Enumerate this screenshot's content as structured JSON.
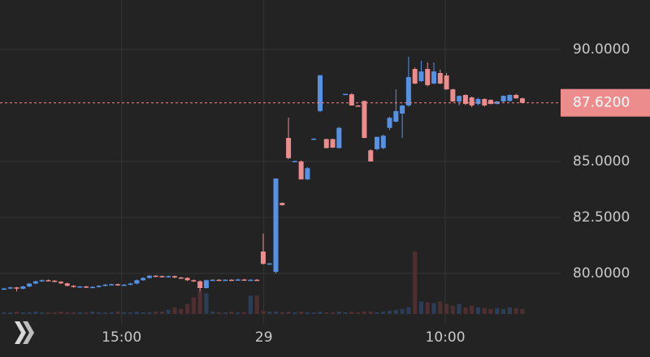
{
  "chart_data": {
    "type": "candlestick",
    "up_color": "#5592e6",
    "down_color": "#ec8c8c",
    "up_volume_color": "#2c3e57",
    "down_volume_color": "#4d2f31",
    "grid": true,
    "ylim": [
      77.72,
      92.21
    ],
    "yticks": [
      {
        "value": 90,
        "label": "90.0000"
      },
      {
        "value": 85,
        "label": "85.0000"
      },
      {
        "value": 82.5,
        "label": "82.5000"
      },
      {
        "value": 80,
        "label": "80.0000"
      }
    ],
    "xlim": [
      -0.64,
      88.05
    ],
    "xticks": [
      {
        "value": 18.6,
        "label": "15:00"
      },
      {
        "value": 41.1,
        "label": "29"
      },
      {
        "value": 69.8,
        "label": "10:00"
      }
    ],
    "last_price": {
      "value": 87.62,
      "label": "87.6200"
    },
    "x": [
      0,
      1,
      2,
      3,
      4,
      5,
      6,
      7,
      8,
      9,
      10,
      11,
      12,
      13,
      14,
      15,
      16,
      17,
      18,
      19,
      20,
      21,
      22,
      23,
      24,
      25,
      26,
      27,
      28,
      29,
      30,
      31,
      32,
      33,
      34,
      35,
      36,
      37,
      38,
      39,
      40,
      41,
      42,
      43,
      44,
      45,
      46,
      47,
      48,
      49,
      50,
      51,
      52,
      53,
      54,
      55,
      56,
      57,
      58,
      59,
      60,
      61,
      62,
      63,
      64,
      65,
      66,
      67,
      68,
      69,
      70,
      71,
      72,
      73,
      74,
      75,
      76,
      77,
      78,
      79,
      80,
      81,
      82
    ],
    "open": [
      79.3,
      79.33,
      79.38,
      79.32,
      79.42,
      79.55,
      79.65,
      79.7,
      79.68,
      79.63,
      79.56,
      79.45,
      79.4,
      79.42,
      79.38,
      79.4,
      79.45,
      79.5,
      79.52,
      79.48,
      79.5,
      79.55,
      79.7,
      79.8,
      79.9,
      79.88,
      79.85,
      79.88,
      79.82,
      79.8,
      79.7,
      79.65,
      79.35,
      79.7,
      79.72,
      79.7,
      79.72,
      79.71,
      79.73,
      79.71,
      79.72,
      80.98,
      80.42,
      80.07,
      83.15,
      86.05,
      85.0,
      85.0,
      84.2,
      86.0,
      87.25,
      86.0,
      86.0,
      85.6,
      88.0,
      88.0,
      87.5,
      87.7,
      85.5,
      85.55,
      85.6,
      86.5,
      86.78,
      87.14,
      87.5,
      89.13,
      88.59,
      89.13,
      88.48,
      88.95,
      88.84,
      88.22,
      87.68,
      87.97,
      87.86,
      87.57,
      87.79,
      87.75,
      87.57,
      87.68,
      87.7,
      87.97,
      87.82
    ],
    "high": [
      79.36,
      79.41,
      79.4,
      79.45,
      79.58,
      79.68,
      79.73,
      79.73,
      79.71,
      79.66,
      79.59,
      79.48,
      79.45,
      79.45,
      79.43,
      79.48,
      79.53,
      79.55,
      79.55,
      79.53,
      79.58,
      79.73,
      79.83,
      79.93,
      79.93,
      79.91,
      79.91,
      79.91,
      79.85,
      79.83,
      79.73,
      79.7,
      79.73,
      79.75,
      79.75,
      79.75,
      79.75,
      79.76,
      79.76,
      79.75,
      79.75,
      81.78,
      80.46,
      84.24,
      83.17,
      86.96,
      85.04,
      85.05,
      84.75,
      86.03,
      88.85,
      86.02,
      86.02,
      86.55,
      88.03,
      88.05,
      87.52,
      87.72,
      85.55,
      86.1,
      86.2,
      87.0,
      88.22,
      87.52,
      89.67,
      89.2,
      89.5,
      89.42,
      89.42,
      89.1,
      88.95,
      88.25,
      87.95,
      88.0,
      87.9,
      87.85,
      87.82,
      87.78,
      87.7,
      87.95,
      88.0,
      88.02,
      87.85
    ],
    "low": [
      79.27,
      79.3,
      79.2,
      79.29,
      79.39,
      79.52,
      79.62,
      79.65,
      79.6,
      79.53,
      79.42,
      79.37,
      79.37,
      79.35,
      79.35,
      79.37,
      79.42,
      79.47,
      79.45,
      79.45,
      79.47,
      79.52,
      79.67,
      79.77,
      79.85,
      79.82,
      79.82,
      79.79,
      79.77,
      79.67,
      79.62,
      79.2,
      79.32,
      79.67,
      79.67,
      79.67,
      79.68,
      79.68,
      79.68,
      79.68,
      79.67,
      80.4,
      80.38,
      80.0,
      83.03,
      85.1,
      84.97,
      84.2,
      84.18,
      85.97,
      87.2,
      85.58,
      85.6,
      85.58,
      87.97,
      87.5,
      87.48,
      86.05,
      85.0,
      85.5,
      85.55,
      86.4,
      86.75,
      86.05,
      87.45,
      88.45,
      88.55,
      88.35,
      88.45,
      88.45,
      88.2,
      87.65,
      87.5,
      87.52,
      87.42,
      87.5,
      87.45,
      87.55,
      87.55,
      87.65,
      87.68,
      87.8,
      87.62
    ],
    "close": [
      79.33,
      79.38,
      79.32,
      79.42,
      79.55,
      79.65,
      79.7,
      79.68,
      79.63,
      79.56,
      79.45,
      79.4,
      79.42,
      79.38,
      79.4,
      79.45,
      79.5,
      79.52,
      79.48,
      79.5,
      79.55,
      79.7,
      79.8,
      79.9,
      79.88,
      79.85,
      79.88,
      79.82,
      79.8,
      79.7,
      79.65,
      79.35,
      79.7,
      79.72,
      79.7,
      79.72,
      79.71,
      79.73,
      79.71,
      79.72,
      79.7,
      80.43,
      80.45,
      84.24,
      83.05,
      85.15,
      85.02,
      84.2,
      84.7,
      86.02,
      88.85,
      85.6,
      85.62,
      86.5,
      88.02,
      87.5,
      87.49,
      86.05,
      85.0,
      86.1,
      86.15,
      86.95,
      87.25,
      87.5,
      88.77,
      88.48,
      89.02,
      88.41,
      89.02,
      88.48,
      88.22,
      87.68,
      87.93,
      87.57,
      87.5,
      87.79,
      87.5,
      87.57,
      87.68,
      87.93,
      87.97,
      87.82,
      87.62
    ],
    "volume": [
      2,
      2,
      3,
      2,
      2,
      3,
      2,
      2,
      2,
      3,
      2,
      2,
      2,
      2,
      3,
      2,
      2,
      2,
      3,
      2,
      2,
      3,
      2,
      2,
      3,
      3,
      5,
      8,
      6,
      12,
      20,
      28,
      25,
      3,
      2,
      2,
      3,
      2,
      2,
      22,
      22,
      4,
      3,
      3,
      2,
      3,
      2,
      3,
      2,
      2,
      3,
      2,
      2,
      3,
      2,
      3,
      2,
      3,
      3,
      2,
      3,
      4,
      5,
      6,
      8,
      75,
      15,
      14,
      13,
      15,
      12,
      10,
      12,
      8,
      10,
      8,
      7,
      6,
      7,
      6,
      8,
      7,
      6
    ]
  }
}
